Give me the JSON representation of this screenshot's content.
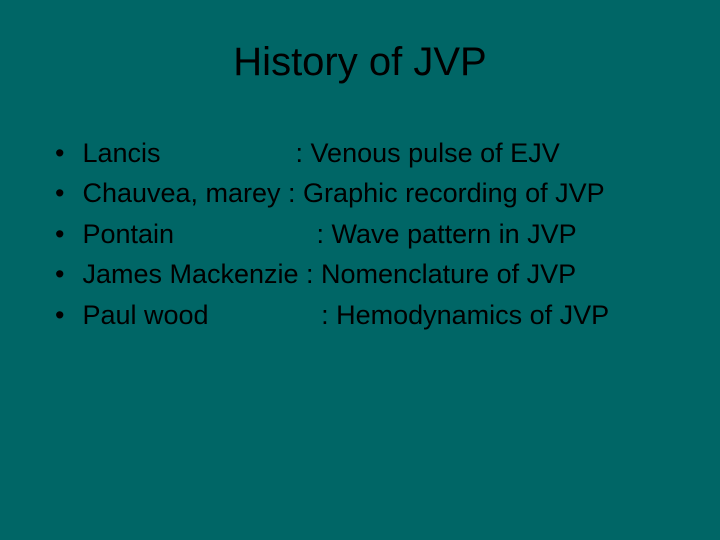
{
  "slide": {
    "background_color": "#006666",
    "title": {
      "text": "History of JVP",
      "color": "#000000",
      "fontsize": 40
    },
    "bullets": {
      "marker": "•",
      "color": "#000000",
      "fontsize": 27,
      "items": [
        "Lancis                  : Venous pulse of EJV",
        "Chauvea, marey : Graphic recording of JVP",
        "Pontain                   : Wave pattern in JVP",
        "James Mackenzie : Nomenclature of JVP",
        "Paul wood               : Hemodynamics of JVP"
      ]
    }
  }
}
